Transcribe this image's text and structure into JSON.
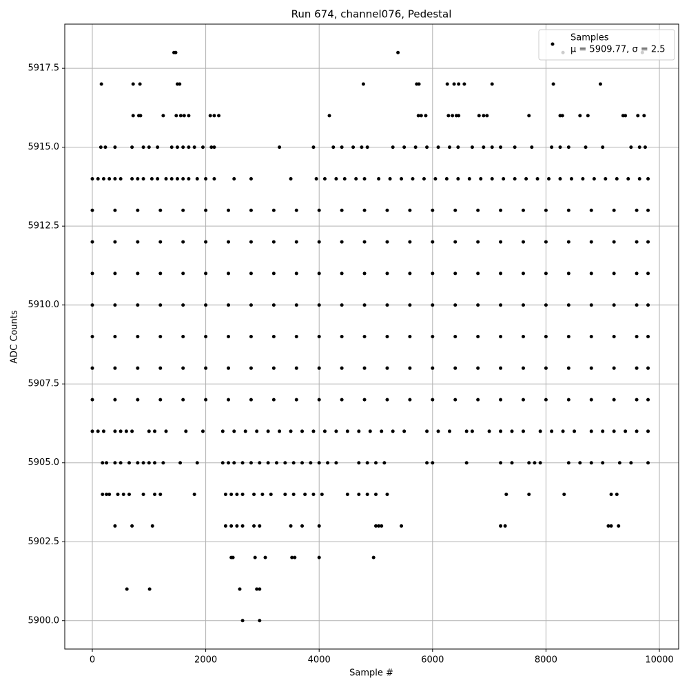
{
  "chart_data": {
    "type": "scatter",
    "title": "Run 674, channel076, Pedestal",
    "xlabel": "Sample #",
    "ylabel": "ADC Counts",
    "xlim": [
      -486,
      10340
    ],
    "ylim": [
      5899.1,
      5918.9
    ],
    "xticks": [
      0,
      2000,
      4000,
      6000,
      8000,
      10000
    ],
    "yticks": [
      {
        "value": 5900,
        "label": "5900.0"
      },
      5902.5,
      {
        "value": 5905,
        "label": "5905.0"
      },
      5907.5,
      {
        "value": 5910,
        "label": "5910.0"
      },
      5912.5,
      {
        "value": 5915,
        "label": "5915.0"
      },
      5917.5
    ],
    "grid": true,
    "legend": "upper right",
    "legend_note": "μ = 5909.77, σ = 2.5",
    "series": [
      {
        "name": "Samples",
        "color": "#000000",
        "x": [
          1440,
          1470,
          5390,
          8300,
          9700,
          160,
          720,
          840,
          1500,
          1540,
          4780,
          5720,
          5760,
          6260,
          6380,
          6460,
          6560,
          7050,
          8130,
          8960,
          720,
          820,
          850,
          1250,
          1480,
          1560,
          1620,
          1700,
          2080,
          2150,
          2230,
          4180,
          5750,
          5800,
          5880,
          6280,
          6350,
          6420,
          6460,
          6820,
          6900,
          6960,
          7700,
          8250,
          8290,
          8600,
          8740,
          9360,
          9400,
          9620,
          9730,
          150,
          230,
          400,
          700,
          900,
          1000,
          1150,
          1400,
          1500,
          1600,
          1700,
          1800,
          1950,
          2100,
          2150,
          3300,
          3900,
          4250,
          4400,
          4600,
          4750,
          4850,
          5300,
          5500,
          5700,
          5900,
          6100,
          6300,
          6450,
          6700,
          6900,
          7050,
          7200,
          7450,
          7750,
          8100,
          8250,
          8400,
          8700,
          9000,
          9500,
          9650,
          9750,
          0,
          100,
          200,
          300,
          400,
          500,
          700,
          800,
          900,
          1050,
          1150,
          1300,
          1400,
          1500,
          1600,
          1700,
          1850,
          2000,
          2150,
          2500,
          2800,
          3500,
          3950,
          4100,
          4300,
          4450,
          4650,
          4800,
          5050,
          5250,
          5450,
          5650,
          5850,
          6050,
          6250,
          6450,
          6650,
          6850,
          7050,
          7250,
          7450,
          7650,
          7850,
          8050,
          8250,
          8450,
          8650,
          8850,
          9050,
          9250,
          9450,
          9650,
          9800,
          0,
          400,
          800,
          1200,
          1600,
          2000,
          2400,
          2800,
          3200,
          3600,
          4000,
          4400,
          4800,
          5200,
          5600,
          6000,
          6400,
          6800,
          7200,
          7600,
          8000,
          8400,
          8800,
          9200,
          9600,
          9800,
          0,
          400,
          800,
          1200,
          1600,
          2000,
          2400,
          2800,
          3200,
          3600,
          4000,
          4400,
          4800,
          5200,
          5600,
          6000,
          6400,
          6800,
          7200,
          7600,
          8000,
          8400,
          8800,
          9200,
          9600,
          9800,
          0,
          400,
          800,
          1200,
          1600,
          2000,
          2400,
          2800,
          3200,
          3600,
          4000,
          4400,
          4800,
          5200,
          5600,
          6000,
          6400,
          6800,
          7200,
          7600,
          8000,
          8400,
          8800,
          9200,
          9600,
          9800,
          0,
          400,
          800,
          1200,
          1600,
          2000,
          2400,
          2800,
          3200,
          3600,
          4000,
          4400,
          4800,
          5200,
          5600,
          6000,
          6400,
          6800,
          7200,
          7600,
          8000,
          8400,
          8800,
          9200,
          9600,
          9800,
          0,
          400,
          800,
          1200,
          1600,
          2000,
          2400,
          2800,
          3200,
          3600,
          4000,
          4400,
          4800,
          5200,
          5600,
          6000,
          6400,
          6800,
          7200,
          7600,
          8000,
          8400,
          8800,
          9200,
          9600,
          9800,
          0,
          400,
          800,
          1200,
          1600,
          2000,
          2400,
          2800,
          3200,
          3600,
          4000,
          4400,
          4800,
          5200,
          5600,
          6000,
          6400,
          6800,
          7200,
          7600,
          8000,
          8400,
          8800,
          9200,
          9600,
          9800,
          0,
          400,
          800,
          1200,
          1600,
          2000,
          2400,
          2800,
          3200,
          3600,
          4000,
          4400,
          4800,
          5200,
          5600,
          6000,
          6400,
          6800,
          7200,
          7600,
          8000,
          8400,
          8800,
          9200,
          9600,
          9800,
          0,
          100,
          200,
          400,
          500,
          600,
          700,
          1000,
          1100,
          1300,
          1650,
          1950,
          2300,
          2500,
          2700,
          2900,
          3100,
          3300,
          3500,
          3700,
          3900,
          4100,
          4300,
          4500,
          4700,
          4900,
          5100,
          5300,
          5500,
          5900,
          6100,
          6300,
          6600,
          6700,
          7000,
          7200,
          7400,
          7600,
          7900,
          8100,
          8300,
          8500,
          8800,
          9000,
          9200,
          9400,
          9600,
          9800,
          180,
          250,
          400,
          500,
          650,
          800,
          900,
          1000,
          1100,
          1250,
          1550,
          1850,
          2300,
          2400,
          2500,
          2650,
          2800,
          2950,
          3100,
          3250,
          3400,
          3550,
          3700,
          3850,
          4000,
          4150,
          4300,
          4700,
          4850,
          5000,
          5150,
          5900,
          6000,
          6600,
          7200,
          7400,
          7700,
          7800,
          7900,
          8400,
          8600,
          8800,
          9000,
          9300,
          9500,
          9800,
          180,
          250,
          300,
          450,
          550,
          650,
          900,
          1100,
          1200,
          1800,
          2350,
          2450,
          2550,
          2650,
          2850,
          3000,
          3150,
          3400,
          3550,
          3750,
          3900,
          4050,
          4500,
          4700,
          4850,
          5000,
          5200,
          7300,
          7700,
          8320,
          9150,
          9250,
          400,
          700,
          1060,
          2350,
          2450,
          2550,
          2650,
          2850,
          2950,
          3500,
          3700,
          4000,
          5000,
          5050,
          5100,
          5450,
          7200,
          7280,
          9100,
          9150,
          9280,
          2450,
          2480,
          2870,
          3050,
          3520,
          3570,
          4000,
          4960,
          610,
          1010,
          2600,
          2900,
          2950,
          2650,
          2950
        ],
        "values": [
          5918,
          5918,
          5918,
          5918,
          5918,
          5917,
          5917,
          5917,
          5917,
          5917,
          5917,
          5917,
          5917,
          5917,
          5917,
          5917,
          5917,
          5917,
          5917,
          5917,
          5916,
          5916,
          5916,
          5916,
          5916,
          5916,
          5916,
          5916,
          5916,
          5916,
          5916,
          5916,
          5916,
          5916,
          5916,
          5916,
          5916,
          5916,
          5916,
          5916,
          5916,
          5916,
          5916,
          5916,
          5916,
          5916,
          5916,
          5916,
          5916,
          5916,
          5916,
          5915,
          5915,
          5915,
          5915,
          5915,
          5915,
          5915,
          5915,
          5915,
          5915,
          5915,
          5915,
          5915,
          5915,
          5915,
          5915,
          5915,
          5915,
          5915,
          5915,
          5915,
          5915,
          5915,
          5915,
          5915,
          5915,
          5915,
          5915,
          5915,
          5915,
          5915,
          5915,
          5915,
          5915,
          5915,
          5915,
          5915,
          5915,
          5915,
          5915,
          5915,
          5915,
          5915,
          5914,
          5914,
          5914,
          5914,
          5914,
          5914,
          5914,
          5914,
          5914,
          5914,
          5914,
          5914,
          5914,
          5914,
          5914,
          5914,
          5914,
          5914,
          5914,
          5914,
          5914,
          5914,
          5914,
          5914,
          5914,
          5914,
          5914,
          5914,
          5914,
          5914,
          5914,
          5914,
          5914,
          5914,
          5914,
          5914,
          5914,
          5914,
          5914,
          5914,
          5914,
          5914,
          5914,
          5914,
          5914,
          5914,
          5914,
          5914,
          5914,
          5914,
          5914,
          5914,
          5914,
          5913,
          5913,
          5913,
          5913,
          5913,
          5913,
          5913,
          5913,
          5913,
          5913,
          5913,
          5913,
          5913,
          5913,
          5913,
          5913,
          5913,
          5913,
          5913,
          5913,
          5913,
          5913,
          5913,
          5913,
          5913,
          5913,
          5912,
          5912,
          5912,
          5912,
          5912,
          5912,
          5912,
          5912,
          5912,
          5912,
          5912,
          5912,
          5912,
          5912,
          5912,
          5912,
          5912,
          5912,
          5912,
          5912,
          5912,
          5912,
          5912,
          5912,
          5912,
          5912,
          5911,
          5911,
          5911,
          5911,
          5911,
          5911,
          5911,
          5911,
          5911,
          5911,
          5911,
          5911,
          5911,
          5911,
          5911,
          5911,
          5911,
          5911,
          5911,
          5911,
          5911,
          5911,
          5911,
          5911,
          5911,
          5911,
          5910,
          5910,
          5910,
          5910,
          5910,
          5910,
          5910,
          5910,
          5910,
          5910,
          5910,
          5910,
          5910,
          5910,
          5910,
          5910,
          5910,
          5910,
          5910,
          5910,
          5910,
          5910,
          5910,
          5910,
          5910,
          5910,
          5909,
          5909,
          5909,
          5909,
          5909,
          5909,
          5909,
          5909,
          5909,
          5909,
          5909,
          5909,
          5909,
          5909,
          5909,
          5909,
          5909,
          5909,
          5909,
          5909,
          5909,
          5909,
          5909,
          5909,
          5909,
          5909,
          5908,
          5908,
          5908,
          5908,
          5908,
          5908,
          5908,
          5908,
          5908,
          5908,
          5908,
          5908,
          5908,
          5908,
          5908,
          5908,
          5908,
          5908,
          5908,
          5908,
          5908,
          5908,
          5908,
          5908,
          5908,
          5908,
          5907,
          5907,
          5907,
          5907,
          5907,
          5907,
          5907,
          5907,
          5907,
          5907,
          5907,
          5907,
          5907,
          5907,
          5907,
          5907,
          5907,
          5907,
          5907,
          5907,
          5907,
          5907,
          5907,
          5907,
          5907,
          5907,
          5906,
          5906,
          5906,
          5906,
          5906,
          5906,
          5906,
          5906,
          5906,
          5906,
          5906,
          5906,
          5906,
          5906,
          5906,
          5906,
          5906,
          5906,
          5906,
          5906,
          5906,
          5906,
          5906,
          5906,
          5906,
          5906,
          5906,
          5906,
          5906,
          5906,
          5906,
          5906,
          5906,
          5906,
          5906,
          5906,
          5906,
          5906,
          5906,
          5906,
          5906,
          5906,
          5906,
          5906,
          5906,
          5906,
          5906,
          5906,
          5905,
          5905,
          5905,
          5905,
          5905,
          5905,
          5905,
          5905,
          5905,
          5905,
          5905,
          5905,
          5905,
          5905,
          5905,
          5905,
          5905,
          5905,
          5905,
          5905,
          5905,
          5905,
          5905,
          5905,
          5905,
          5905,
          5905,
          5905,
          5905,
          5905,
          5905,
          5905,
          5905,
          5905,
          5905,
          5905,
          5905,
          5905,
          5905,
          5905,
          5905,
          5905,
          5905,
          5905,
          5905,
          5905,
          5904,
          5904,
          5904,
          5904,
          5904,
          5904,
          5904,
          5904,
          5904,
          5904,
          5904,
          5904,
          5904,
          5904,
          5904,
          5904,
          5904,
          5904,
          5904,
          5904,
          5904,
          5904,
          5904,
          5904,
          5904,
          5904,
          5904,
          5904,
          5904,
          5904,
          5904,
          5904,
          5903,
          5903,
          5903,
          5903,
          5903,
          5903,
          5903,
          5903,
          5903,
          5903,
          5903,
          5903,
          5903,
          5903,
          5903,
          5903,
          5903,
          5903,
          5903,
          5903,
          5903,
          5902,
          5902,
          5902,
          5902,
          5902,
          5902,
          5902,
          5902,
          5901,
          5901,
          5901,
          5901,
          5901,
          5900,
          5900
        ]
      }
    ]
  }
}
